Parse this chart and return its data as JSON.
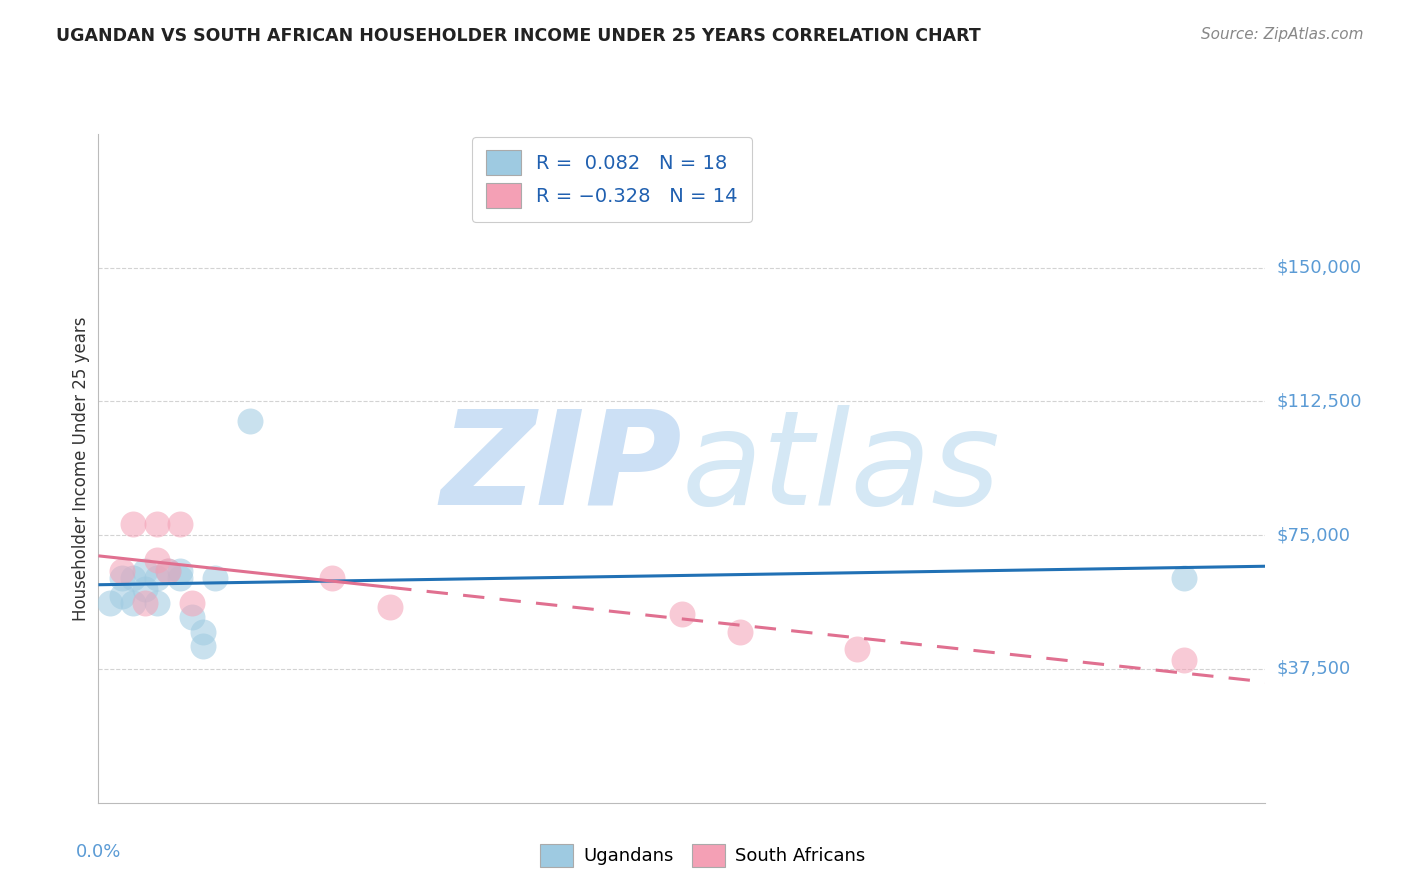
{
  "title": "UGANDAN VS SOUTH AFRICAN HOUSEHOLDER INCOME UNDER 25 YEARS CORRELATION CHART",
  "source": "Source: ZipAtlas.com",
  "ylabel": "Householder Income Under 25 years",
  "watermark_zip": "ZIP",
  "watermark_atlas": "atlas",
  "xlim": [
    0.0,
    0.1
  ],
  "ylim": [
    0,
    187500
  ],
  "yticks": [
    37500,
    75000,
    112500,
    150000
  ],
  "ytick_labels": [
    "$37,500",
    "$75,000",
    "$112,500",
    "$150,000"
  ],
  "ugandan_x": [
    0.001,
    0.002,
    0.002,
    0.003,
    0.003,
    0.004,
    0.004,
    0.005,
    0.005,
    0.006,
    0.007,
    0.007,
    0.008,
    0.009,
    0.009,
    0.01,
    0.013,
    0.093
  ],
  "ugandan_y": [
    56000,
    58000,
    63000,
    56000,
    63000,
    60000,
    65000,
    56000,
    63000,
    65000,
    65000,
    63000,
    52000,
    48000,
    44000,
    63000,
    107000,
    63000
  ],
  "southafrican_x": [
    0.002,
    0.003,
    0.004,
    0.005,
    0.005,
    0.006,
    0.007,
    0.008,
    0.02,
    0.025,
    0.05,
    0.055,
    0.065,
    0.093
  ],
  "southafrican_y": [
    65000,
    78000,
    56000,
    78000,
    68000,
    65000,
    78000,
    56000,
    63000,
    55000,
    53000,
    48000,
    43000,
    40000
  ],
  "ugandan_color": "#9ecae1",
  "southafrican_color": "#f4a0b5",
  "ugandan_line_color": "#2171b5",
  "southafrican_line_color": "#e07090",
  "axis_label_color": "#5b9bd5",
  "legend_text_color": "#2060b0",
  "grid_color": "#c8c8c8",
  "background_color": "#ffffff",
  "watermark_color": "#cce0f5",
  "title_color": "#222222",
  "source_color": "#888888"
}
